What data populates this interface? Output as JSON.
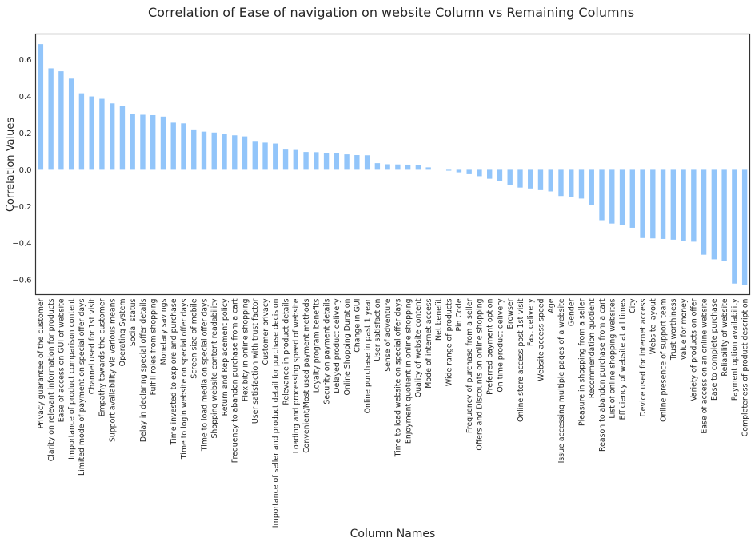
{
  "chart_data": {
    "type": "bar",
    "title": "Correlation of Ease of navigation on website Column vs Remaining Columns",
    "xlabel": "Column Names",
    "ylabel": "Correlation Values",
    "ylim": [
      -0.68,
      0.74
    ],
    "yticks": [
      -0.6,
      -0.4,
      -0.2,
      0.0,
      0.2,
      0.4,
      0.6
    ],
    "ytick_labels": [
      "−0.6",
      "−0.4",
      "−0.2",
      "0.0",
      "0.2",
      "0.4",
      "0.6"
    ],
    "grid": false,
    "bar_color": "#92c5fa",
    "categories": [
      "Privacy guarantee of the customer",
      "Clarity on relevant information for products",
      "Ease of access on GUI of website",
      "Importance of product comparison content",
      "Limited mode of payment on special offer days",
      "Channel used for 1st visit",
      "Empathy towards the customer",
      "Support availability via various means",
      "Operating System",
      "Social status",
      "Delay in declaring special offer details",
      "Fulfill roles from shopping",
      "Monetary savings",
      "Time invested to explore and purchase",
      "Time to login website on special offer days",
      "Screen size of mobile",
      "Time to load media on special offer days",
      "Shopping website content readability",
      "Return and Replacement policy",
      "Frequency to abandon purchase from a cart",
      "Flexibity in online shopping",
      "User satisfaction with trust factor",
      "Customer privacy",
      "Importance of seller and product detail for purchase decision",
      "Relevance in product details",
      "Loading and processing speed of website",
      "Convenient/Most used payment methods",
      "Loyalty program benefits",
      "Security on payment details",
      "Delayed product delivery",
      "Online Shopping Duration",
      "Change in GUI",
      "Online purchase in past 1 year",
      "User satisfaction",
      "Sense of adventure",
      "Time to load website on special offer days",
      "Enjoyment quotient in online shopping",
      "Quality of website content",
      "Mode of internet access",
      "Net benefit",
      "Wide range of products",
      "Pin Code",
      "Frequency of purchase from a seller",
      "Offers and Discounts on online shopping",
      "Preferred payment option",
      "On time product delivery",
      "Browser",
      "Online store access post 1st visit",
      "Fast delivery",
      "Website access speed",
      "Age",
      "Issue accessing multiple pages of a website",
      "Gender",
      "Pleasure in shopping from a seller",
      "Recommendation quotient",
      "Reason to abandon purchase from a cart",
      "List of online shopping websites",
      "Efficiency of website at all times",
      "City",
      "Device used for internet access",
      "Website layout",
      "Online presence of support team",
      "Trust worthiness",
      "Value for money",
      "Variety of products on offer",
      "Ease of access on an online website",
      "Ease to complete purchase",
      "Reliability of website",
      "Payment option availability",
      "Completeness of product description"
    ],
    "values": [
      0.685,
      0.553,
      0.537,
      0.497,
      0.417,
      0.4,
      0.387,
      0.362,
      0.347,
      0.305,
      0.3,
      0.298,
      0.29,
      0.257,
      0.253,
      0.22,
      0.208,
      0.203,
      0.197,
      0.188,
      0.182,
      0.153,
      0.148,
      0.143,
      0.11,
      0.108,
      0.097,
      0.096,
      0.093,
      0.089,
      0.084,
      0.08,
      0.079,
      0.036,
      0.03,
      0.029,
      0.028,
      0.027,
      0.013,
      0.0,
      -0.005,
      -0.014,
      -0.024,
      -0.035,
      -0.049,
      -0.063,
      -0.081,
      -0.097,
      -0.102,
      -0.111,
      -0.118,
      -0.143,
      -0.15,
      -0.157,
      -0.193,
      -0.275,
      -0.293,
      -0.301,
      -0.316,
      -0.372,
      -0.374,
      -0.377,
      -0.381,
      -0.388,
      -0.392,
      -0.463,
      -0.488,
      -0.498,
      -0.62,
      -0.628
    ]
  }
}
